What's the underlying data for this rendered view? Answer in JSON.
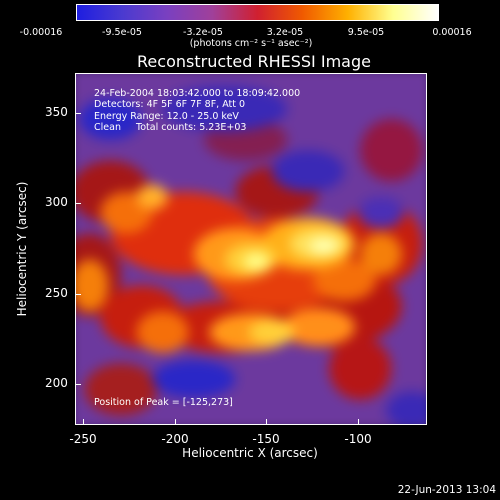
{
  "colorbar": {
    "tick_labels": [
      "-0.00016",
      "-9.5e-05",
      "-3.2e-05",
      "3.2e-05",
      "9.5e-05",
      "0.00016"
    ],
    "units": "(photons cm⁻² s⁻¹ asec⁻²)",
    "colors": [
      "#1e1ee0",
      "#4a3ad0",
      "#7a40c0",
      "#a0409a",
      "#d02030",
      "#f05a00",
      "#ffb000",
      "#ffff90",
      "#ffffff"
    ]
  },
  "title": "Reconstructed RHESSI Image",
  "info": {
    "line1": "24-Feb-2004 18:03:42.000 to 18:09:42.000",
    "line2": "Detectors: 4F 5F 6F 7F 8F, Att 0",
    "line3": "Energy Range: 12.0 - 25.0 keV",
    "line4": "Clean     Total counts: 5.23E+03",
    "peak": "Position of Peak = [-125,273]"
  },
  "axes": {
    "xlabel": "Heliocentric X (arcsec)",
    "ylabel": "Heliocentric Y (arcsec)",
    "x_ticks": [
      "-250",
      "-200",
      "-150",
      "-100"
    ],
    "y_ticks": [
      "350",
      "300",
      "250",
      "200"
    ],
    "xlim": [
      -255,
      -65
    ],
    "ylim": [
      178,
      370
    ]
  },
  "timestamp": "22-Jun-2013 13:04",
  "chart_data": {
    "type": "heatmap",
    "title": "Reconstructed RHESSI Image",
    "xlabel": "Heliocentric X (arcsec)",
    "ylabel": "Heliocentric Y (arcsec)",
    "xlim": [
      -255,
      -65
    ],
    "ylim": [
      178,
      370
    ],
    "value_range": [
      -0.00016,
      0.00016
    ],
    "peak_position": [
      -125,
      273
    ]
  }
}
